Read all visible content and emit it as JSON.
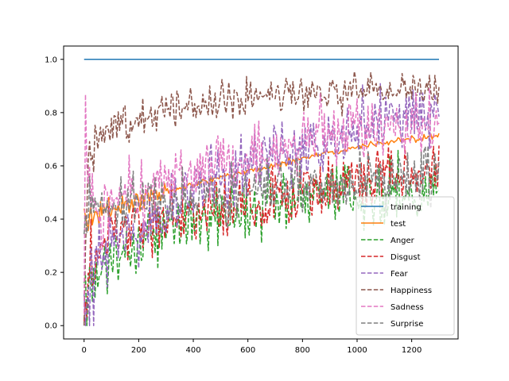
{
  "chart_data": {
    "type": "line",
    "title": "",
    "xlabel": "",
    "ylabel": "",
    "xlim": [
      -75,
      1370
    ],
    "ylim": [
      -0.05,
      1.05
    ],
    "xticks": [
      0,
      200,
      400,
      600,
      800,
      1000,
      1200
    ],
    "yticks": [
      0.0,
      0.2,
      0.4,
      0.6,
      0.8,
      1.0
    ],
    "grid": false,
    "legend_position": "lower-right",
    "noise_seed": 20240611,
    "series": [
      {
        "name": "training",
        "color": "#1f77b4",
        "style": "solid",
        "noise": 0.0,
        "x": [
          0,
          1300
        ],
        "y": [
          1.0,
          1.0
        ]
      },
      {
        "name": "test",
        "color": "#ff7f0e",
        "style": "solid",
        "noise": 0.02,
        "x": [
          0,
          50,
          100,
          200,
          300,
          400,
          500,
          600,
          700,
          800,
          900,
          1000,
          1100,
          1200,
          1300
        ],
        "y": [
          0.4,
          0.42,
          0.44,
          0.47,
          0.5,
          0.53,
          0.56,
          0.58,
          0.6,
          0.63,
          0.65,
          0.67,
          0.69,
          0.7,
          0.71
        ]
      },
      {
        "name": "Anger",
        "color": "#2ca02c",
        "style": "dashed",
        "noise": 0.09,
        "x": [
          0,
          30,
          60,
          100,
          200,
          300,
          400,
          500,
          600,
          700,
          800,
          900,
          1000,
          1100,
          1200,
          1300
        ],
        "y": [
          0.05,
          0.15,
          0.2,
          0.25,
          0.32,
          0.36,
          0.4,
          0.42,
          0.44,
          0.45,
          0.46,
          0.48,
          0.49,
          0.5,
          0.51,
          0.52
        ]
      },
      {
        "name": "Disgust",
        "color": "#d62728",
        "style": "dashed",
        "noise": 0.09,
        "x": [
          0,
          30,
          60,
          100,
          200,
          300,
          400,
          500,
          600,
          700,
          800,
          900,
          1000,
          1100,
          1200,
          1300
        ],
        "y": [
          0.1,
          0.25,
          0.3,
          0.33,
          0.37,
          0.4,
          0.42,
          0.44,
          0.46,
          0.48,
          0.5,
          0.52,
          0.54,
          0.56,
          0.58,
          0.59
        ]
      },
      {
        "name": "Fear",
        "color": "#9467bd",
        "style": "dashed",
        "noise": 0.1,
        "x": [
          0,
          30,
          60,
          100,
          200,
          300,
          400,
          500,
          600,
          700,
          800,
          900,
          1000,
          1100,
          1200,
          1300
        ],
        "y": [
          0.1,
          0.22,
          0.26,
          0.3,
          0.38,
          0.44,
          0.5,
          0.55,
          0.6,
          0.64,
          0.68,
          0.72,
          0.75,
          0.77,
          0.79,
          0.81
        ]
      },
      {
        "name": "Happiness",
        "color": "#8c564b",
        "style": "dashed",
        "noise": 0.05,
        "x": [
          0,
          10,
          30,
          60,
          100,
          200,
          300,
          400,
          500,
          600,
          700,
          800,
          900,
          1000,
          1100,
          1200,
          1300
        ],
        "y": [
          0.1,
          0.55,
          0.68,
          0.72,
          0.75,
          0.79,
          0.81,
          0.83,
          0.84,
          0.85,
          0.86,
          0.87,
          0.87,
          0.88,
          0.88,
          0.89,
          0.89
        ]
      },
      {
        "name": "Sadness",
        "color": "#e377c2",
        "style": "dashed",
        "noise": 0.09,
        "x": [
          0,
          5,
          20,
          60,
          100,
          200,
          300,
          400,
          500,
          600,
          700,
          800,
          900,
          1000,
          1100,
          1200,
          1300
        ],
        "y": [
          0.1,
          0.94,
          0.5,
          0.42,
          0.45,
          0.5,
          0.55,
          0.58,
          0.61,
          0.64,
          0.66,
          0.69,
          0.71,
          0.72,
          0.74,
          0.75,
          0.76
        ]
      },
      {
        "name": "Surprise",
        "color": "#7f7f7f",
        "style": "dashed",
        "noise": 0.08,
        "x": [
          0,
          30,
          60,
          100,
          200,
          300,
          400,
          500,
          600,
          700,
          800,
          900,
          1000,
          1100,
          1200,
          1300
        ],
        "y": [
          0.35,
          0.42,
          0.44,
          0.45,
          0.46,
          0.47,
          0.48,
          0.49,
          0.5,
          0.51,
          0.52,
          0.53,
          0.54,
          0.55,
          0.56,
          0.57
        ]
      }
    ]
  }
}
